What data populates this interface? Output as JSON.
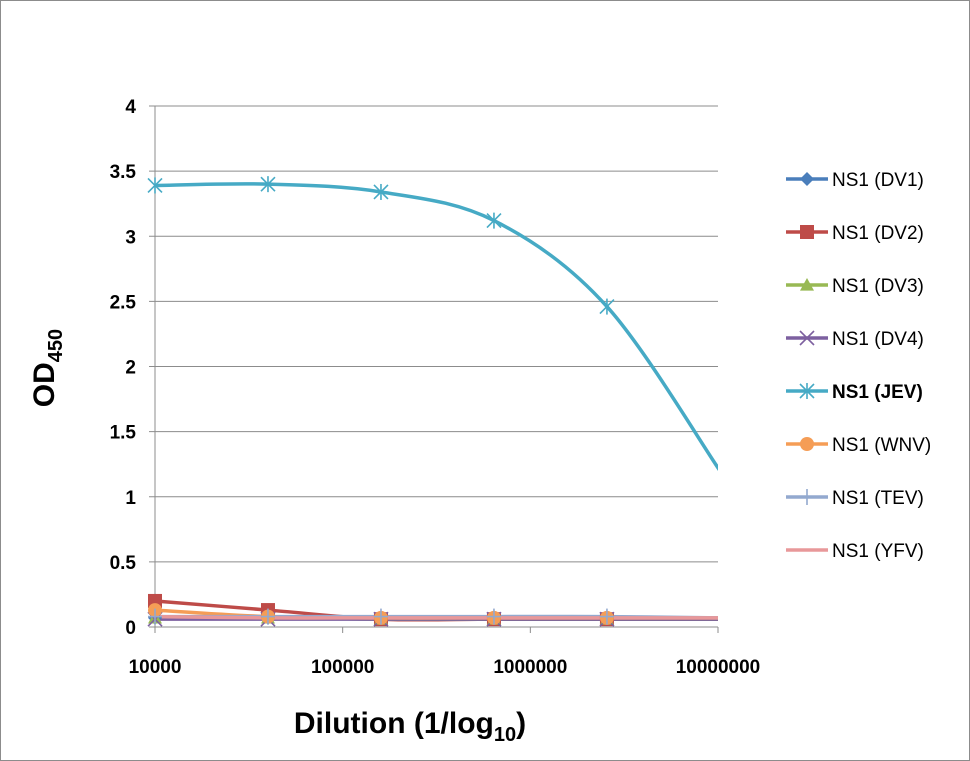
{
  "chart_data": {
    "type": "line",
    "xscale": "log",
    "xlim": [
      10000,
      10000000
    ],
    "ylim": [
      0,
      4
    ],
    "ylabel": {
      "main": "OD",
      "sub": "450"
    },
    "xlabel": {
      "main": "Dilution (1/log",
      "sub": "10",
      "end": ")"
    },
    "x_ticks": [
      "10000",
      "100000",
      "1000000",
      "10000000"
    ],
    "y_ticks": [
      "0",
      "0.5",
      "1",
      "1.5",
      "2",
      "2.5",
      "3",
      "3.5",
      "4"
    ],
    "grid": true,
    "legend_position": "right",
    "x": [
      10000,
      40000,
      160000,
      640000,
      2560000,
      10240000
    ],
    "series": [
      {
        "name": "NS1 (DV1)",
        "color": "#4a7ebb",
        "marker": "diamond",
        "values": [
          0.07,
          0.07,
          0.06,
          0.06,
          0.06,
          0.06
        ]
      },
      {
        "name": "NS1 (DV2)",
        "color": "#be4b48",
        "marker": "square",
        "values": [
          0.2,
          0.13,
          0.06,
          0.06,
          0.06,
          0.06
        ]
      },
      {
        "name": "NS1 (DV3)",
        "color": "#98b954",
        "marker": "triangle",
        "values": [
          0.07,
          0.07,
          0.06,
          0.06,
          0.06,
          0.06
        ]
      },
      {
        "name": "NS1 (DV4)",
        "color": "#7d60a0",
        "marker": "x",
        "values": [
          0.06,
          0.06,
          0.06,
          0.06,
          0.06,
          0.06
        ]
      },
      {
        "name": "NS1 (JEV)",
        "color": "#46aac5",
        "marker": "asterisk",
        "bold": true,
        "values": [
          3.39,
          3.4,
          3.34,
          3.12,
          2.46,
          1.2
        ]
      },
      {
        "name": "NS1 (WNV)",
        "color": "#f59d56",
        "marker": "circle",
        "values": [
          0.13,
          0.08,
          0.07,
          0.07,
          0.07,
          0.07
        ]
      },
      {
        "name": "NS1 (TEV)",
        "color": "#93a9cf",
        "marker": "plus",
        "values": [
          0.08,
          0.08,
          0.08,
          0.08,
          0.08,
          0.07
        ]
      },
      {
        "name": "NS1 (YFV)",
        "color": "#e8989a",
        "marker": "none",
        "values": [
          0.08,
          0.07,
          0.07,
          0.07,
          0.07,
          0.07
        ]
      }
    ]
  }
}
